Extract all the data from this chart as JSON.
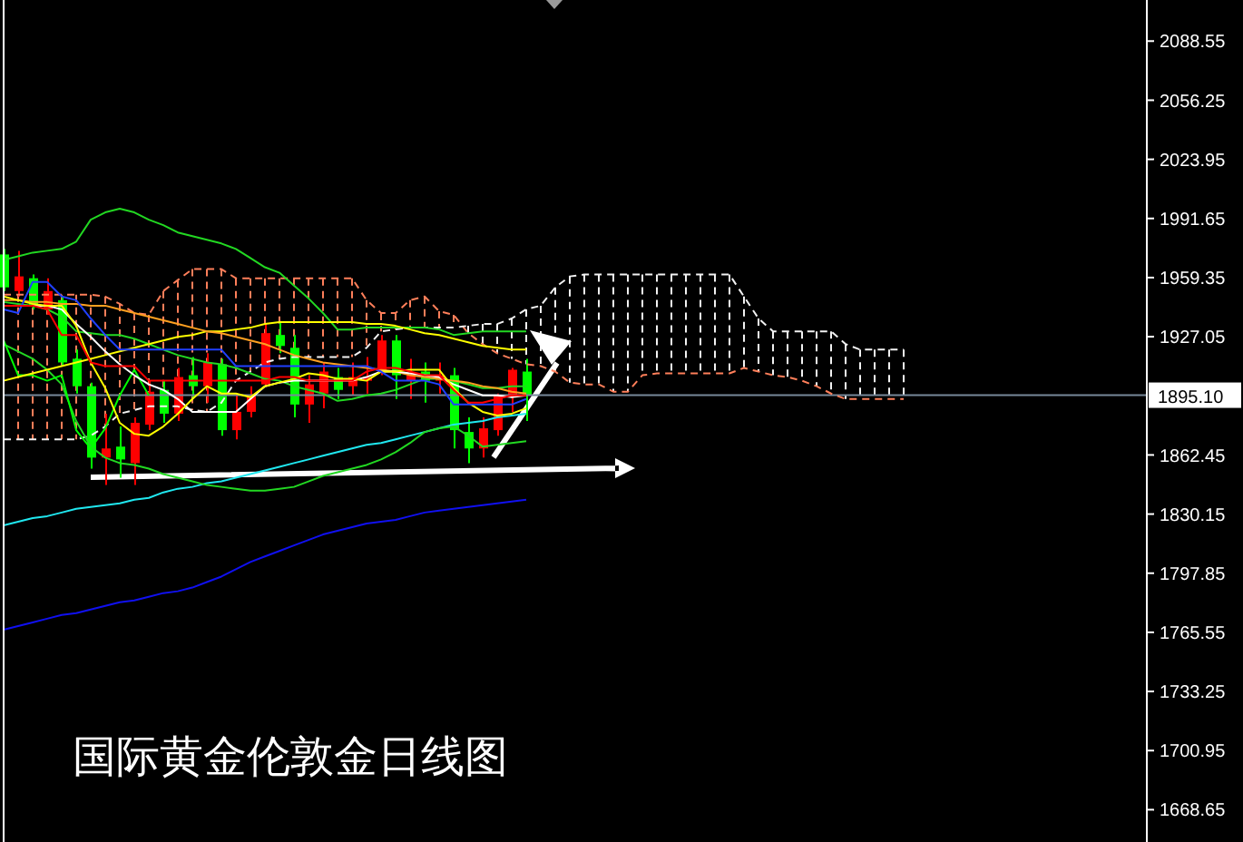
{
  "chart_data": {
    "type": "candlestick",
    "title": "国际黄金伦敦金日线图",
    "categories": [
      null,
      null,
      null,
      null,
      null,
      null,
      null,
      null,
      null,
      null,
      null,
      null,
      null,
      null,
      null,
      null,
      null,
      null,
      null,
      null,
      null,
      null,
      null,
      null,
      null,
      null,
      null,
      null,
      null,
      null,
      null,
      null,
      null,
      null,
      null,
      null,
      null,
      null,
      null,
      null,
      null,
      null,
      null,
      null,
      null,
      null,
      null,
      null,
      null,
      null,
      null,
      null,
      null,
      null,
      null,
      null,
      null,
      null,
      null,
      null,
      null,
      null,
      null,
      null,
      null,
      null,
      null,
      null,
      null,
      null,
      null,
      null,
      null,
      null,
      null,
      null,
      null,
      null,
      null
    ],
    "ohlc": [
      [
        1972,
        1975,
        1952,
        1954
      ],
      [
        1952,
        1974,
        1949,
        1960
      ],
      [
        1959,
        1961,
        1942,
        1944
      ],
      [
        1942,
        1959,
        1939,
        1952
      ],
      [
        1947,
        1949,
        1911,
        1913
      ],
      [
        1915,
        1920,
        1896,
        1900
      ],
      [
        1900,
        1902,
        1855,
        1861
      ],
      [
        1861,
        1885,
        1846,
        1866
      ],
      [
        1867,
        1878,
        1850,
        1860
      ],
      [
        1858,
        1883,
        1846,
        1880
      ],
      [
        1879,
        1903,
        1876,
        1897
      ],
      [
        1898,
        1903,
        1880,
        1885
      ],
      [
        1885,
        1910,
        1881,
        1905
      ],
      [
        1906,
        1916,
        1893,
        1900
      ],
      [
        1900,
        1918,
        1891,
        1913
      ],
      [
        1912,
        1915,
        1873,
        1876
      ],
      [
        1876,
        1896,
        1871,
        1886
      ],
      [
        1886,
        1900,
        1883,
        1895
      ],
      [
        1901,
        1934,
        1900,
        1929
      ],
      [
        1928,
        1935,
        1918,
        1922
      ],
      [
        1921,
        1928,
        1883,
        1890
      ],
      [
        1890,
        1906,
        1880,
        1901
      ],
      [
        1896,
        1913,
        1888,
        1908
      ],
      [
        1905,
        1910,
        1893,
        1898
      ],
      [
        1900,
        1913,
        1895,
        1905
      ],
      [
        1903,
        1916,
        1896,
        1905
      ],
      [
        1908,
        1928,
        1906,
        1925
      ],
      [
        1925,
        1928,
        1893,
        1906
      ],
      [
        1903,
        1915,
        1893,
        1906
      ],
      [
        1908,
        1913,
        1891,
        1903
      ],
      [
        1903,
        1913,
        1896,
        1906
      ],
      [
        1906,
        1910,
        1866,
        1876
      ],
      [
        1875,
        1883,
        1858,
        1866
      ],
      [
        1866,
        1883,
        1861,
        1877
      ],
      [
        1876,
        1896,
        1873,
        1895
      ],
      [
        1895,
        1910,
        1886,
        1909
      ],
      [
        1908,
        1915,
        1881,
        1895
      ],
      null,
      null,
      null,
      null,
      null,
      null,
      null,
      null,
      null,
      null,
      null,
      null,
      null,
      null,
      null,
      null,
      null,
      null,
      null,
      null,
      null,
      null,
      null,
      null,
      null,
      null,
      null,
      null,
      null,
      null,
      null,
      null,
      null,
      null,
      null,
      null,
      null,
      null,
      null,
      null,
      null,
      null
    ],
    "colors": [
      "#00ff00",
      "#ff0000",
      "#00ff00",
      "#ff0000",
      "#00ff00",
      "#00ff00",
      "#00ff00",
      "#ff0000",
      "#00ff00",
      "#ff0000",
      "#ff0000",
      "#00ff00",
      "#ff0000",
      "#00ff00",
      "#ff0000",
      "#00ff00",
      "#ff0000",
      "#ff0000",
      "#ff0000",
      "#00ff00",
      "#00ff00",
      "#ff0000",
      "#ff0000",
      "#00ff00",
      "#ff0000",
      "#ff0000",
      "#ff0000",
      "#00ff00",
      "#ff0000",
      "#00ff00",
      "#ff0000",
      "#00ff00",
      "#00ff00",
      "#ff0000",
      "#ff0000",
      "#ff0000",
      "#00ff00",
      null,
      null,
      null,
      null,
      null,
      null,
      null,
      null,
      null,
      null,
      null,
      null,
      null,
      null,
      null,
      null,
      null,
      null,
      null,
      null,
      null,
      null,
      null,
      null,
      null,
      null,
      null,
      null,
      null,
      null,
      null,
      null,
      null,
      null,
      null,
      null,
      null,
      null,
      null,
      null,
      null,
      null
    ],
    "series": [
      {
        "type": "line",
        "color": "#ff7f5a",
        "line_style": "dashed",
        "values": [
          1950,
          1950,
          1950,
          1950,
          1950,
          1950,
          1950,
          1949,
          1945,
          1940,
          1939,
          1952,
          1958,
          1964,
          1964,
          1964,
          1959,
          1959,
          1959,
          1959,
          1959,
          1959,
          1959,
          1959,
          1959,
          1947,
          1940,
          1940,
          1947,
          1949,
          1941,
          1939,
          1929,
          1923,
          1918,
          1915,
          1912,
          1911,
          1908,
          1902,
          1901,
          1901,
          1897,
          1897,
          1906,
          1907,
          1907,
          1907,
          1907,
          1907,
          1907,
          1910,
          1908,
          1906,
          1905,
          1903,
          1900,
          1896,
          1893,
          1893,
          1893,
          1893,
          1893,
          null,
          null,
          null,
          null,
          null,
          null,
          null,
          null,
          null,
          null,
          null,
          null,
          null,
          null,
          null,
          null
        ]
      },
      {
        "type": "line",
        "color": "#f2f2f2",
        "line_style": "dashed",
        "values": [
          1871,
          1871,
          1871,
          1871,
          1871,
          1871,
          1873,
          1878,
          1885,
          1887,
          1889,
          1889,
          1889,
          1887,
          1886,
          1891,
          1903,
          1908,
          1913,
          1915,
          1916,
          1916,
          1916,
          1916,
          1916,
          1921,
          1930,
          1931,
          1932,
          1932,
          1932,
          1932,
          1933,
          1934,
          1934,
          1937,
          1942,
          1944,
          1954,
          1960,
          1961,
          1961,
          1961,
          1961,
          1961,
          1961,
          1961,
          1961,
          1961,
          1961,
          1961,
          1949,
          1937,
          1930,
          1930,
          1930,
          1930,
          1930,
          1923,
          1920,
          1920,
          1920,
          1920,
          null,
          null,
          null,
          null,
          null,
          null,
          null,
          null,
          null,
          null,
          null,
          null,
          null,
          null,
          null,
          null
        ]
      },
      {
        "type": "line",
        "color": "#1010f0",
        "values": [
          1767,
          1769,
          1771,
          1773,
          1775,
          1776,
          1778,
          1780,
          1782,
          1783,
          1785,
          1787,
          1788,
          1790,
          1793,
          1796,
          1800,
          1804,
          1807,
          1810,
          1813,
          1816,
          1819,
          1821,
          1823,
          1825,
          1826,
          1827,
          1829,
          1831,
          1832,
          1833,
          1834,
          1835,
          1836,
          1837,
          1838,
          null,
          null,
          null,
          null,
          null,
          null,
          null,
          null,
          null,
          null,
          null,
          null,
          null,
          null,
          null,
          null,
          null,
          null,
          null,
          null,
          null,
          null,
          null,
          null,
          null,
          null,
          null,
          null,
          null,
          null,
          null,
          null,
          null,
          null,
          null,
          null,
          null,
          null,
          null,
          null,
          null,
          null
        ]
      },
      {
        "type": "line",
        "color": "#20e8f0",
        "values": [
          1824,
          1826,
          1828,
          1829,
          1831,
          1833,
          1834,
          1835,
          1836,
          1838,
          1839,
          1842,
          1844,
          1845,
          1847,
          1848,
          1850,
          1852,
          1854,
          1856,
          1858,
          1860,
          1862,
          1864,
          1866,
          1868,
          1869,
          1871,
          1873,
          1875,
          1877,
          1879,
          1880,
          1881,
          1883,
          1884,
          1885,
          null,
          null,
          null,
          null,
          null,
          null,
          null,
          null,
          null,
          null,
          null,
          null,
          null,
          null,
          null,
          null,
          null,
          null,
          null,
          null,
          null,
          null,
          null,
          null,
          null,
          null,
          null,
          null,
          null,
          null,
          null,
          null,
          null,
          null,
          null,
          null,
          null,
          null,
          null,
          null,
          null,
          null
        ]
      },
      {
        "type": "line",
        "color": "#22d822",
        "values": [
          1969,
          1971,
          1973,
          1974,
          1975,
          1979,
          1991,
          1995,
          1997,
          1995,
          1991,
          1988,
          1984,
          1982,
          1980,
          1978,
          1975,
          1970,
          1965,
          1962,
          1955,
          1948,
          1940,
          1931,
          1931,
          1932,
          1932,
          1932,
          1932,
          1932,
          1931,
          1928,
          1929,
          1930,
          1930,
          1930,
          1930,
          null,
          null,
          null,
          null,
          null,
          null,
          null,
          null,
          null,
          null,
          null,
          null,
          null,
          null,
          null,
          null,
          null,
          null,
          null,
          null,
          null,
          null,
          null,
          null,
          null,
          null,
          null,
          null,
          null,
          null,
          null,
          null,
          null,
          null,
          null,
          null,
          null,
          null,
          null,
          null,
          null,
          null
        ]
      },
      {
        "type": "line",
        "color": "#22d822",
        "values": [
          1946,
          1945,
          1944,
          1942,
          1938,
          1930,
          1929,
          1928,
          1928,
          1926,
          1923,
          1920,
          1917,
          1915,
          1913,
          1912,
          1910,
          1907,
          1904,
          1903,
          1900,
          1898,
          1896,
          1892,
          1893,
          1895,
          1896,
          1898,
          1901,
          1904,
          1904,
          1903,
          1901,
          1899,
          1899,
          1900,
          1900,
          null,
          null,
          null,
          null,
          null,
          null,
          null,
          null,
          null,
          null,
          null,
          null,
          null,
          null,
          null,
          null,
          null,
          null,
          null,
          null,
          null,
          null,
          null,
          null,
          null,
          null,
          null,
          null,
          null,
          null,
          null,
          null,
          null,
          null,
          null,
          null,
          null,
          null,
          null,
          null,
          null,
          null
        ]
      },
      {
        "type": "line",
        "color": "#22d822",
        "values": [
          1923,
          1919,
          1915,
          1909,
          1901,
          1881,
          1867,
          1861,
          1858,
          1857,
          1855,
          1852,
          1850,
          1848,
          1846,
          1845,
          1844,
          1843,
          1843,
          1844,
          1845,
          1848,
          1851,
          1853,
          1855,
          1857,
          1860,
          1864,
          1869,
          1875,
          1877,
          1878,
          1873,
          1867,
          1868,
          1869,
          1870,
          null,
          null,
          null,
          null,
          null,
          null,
          null,
          null,
          null,
          null,
          null,
          null,
          null,
          null,
          null,
          null,
          null,
          null,
          null,
          null,
          null,
          null,
          null,
          null,
          null,
          null,
          null,
          null,
          null,
          null,
          null,
          null,
          null,
          null,
          null,
          null,
          null,
          null,
          null,
          null,
          null,
          null
        ]
      },
      {
        "type": "line",
        "color": "#00ff00",
        "values": [
          1925,
          1906,
          1906,
          1903,
          1906,
          1876,
          1866,
          1877,
          1895,
          1909,
          1895,
          null,
          null,
          null,
          null,
          null,
          null,
          null,
          null,
          null,
          null,
          null,
          null,
          null,
          null,
          null,
          null,
          null,
          null,
          null,
          null,
          null,
          null,
          null,
          null,
          null,
          null,
          null,
          null,
          null,
          null,
          null,
          null,
          null,
          null,
          null,
          null,
          null,
          null,
          null,
          null,
          null,
          null,
          null,
          null,
          null,
          null,
          null,
          null,
          null,
          null,
          null,
          null,
          null,
          null,
          null,
          null,
          null,
          null,
          null,
          null,
          null,
          null,
          null,
          null,
          null,
          null,
          null,
          null
        ]
      },
      {
        "type": "line",
        "color": "#ffff00",
        "values": [
          1903,
          1905,
          1907,
          1909,
          1911,
          1913,
          1915,
          1917,
          1919,
          1921,
          1923,
          1925,
          1927,
          1928,
          1930,
          1930,
          1931,
          1932,
          1934,
          1935,
          1935,
          1935,
          1935,
          1935,
          1935,
          1934,
          1934,
          1933,
          1931,
          1929,
          1928,
          1926,
          1924,
          1922,
          1921,
          1920,
          1920,
          null,
          null,
          null,
          null,
          null,
          null,
          null,
          null,
          null,
          null,
          null,
          null,
          null,
          null,
          null,
          null,
          null,
          null,
          null,
          null,
          null,
          null,
          null,
          null,
          null,
          null,
          null,
          null,
          null,
          null,
          null,
          null,
          null,
          null,
          null,
          null,
          null,
          null,
          null,
          null,
          null,
          null
        ]
      },
      {
        "type": "line",
        "color": "#ffa020",
        "values": [
          1947,
          1947,
          1946,
          1946,
          1945,
          1945,
          1944,
          1944,
          1942,
          1940,
          1938,
          1936,
          1934,
          1932,
          1930,
          1929,
          1927,
          1925,
          1923,
          1920,
          1917,
          1915,
          1913,
          1912,
          1911,
          1910,
          1909,
          1908,
          1906,
          1905,
          1904,
          1903,
          1902,
          1900,
          1899,
          1897,
          1896,
          null,
          null,
          null,
          null,
          null,
          null,
          null,
          null,
          null,
          null,
          null,
          null,
          null,
          null,
          null,
          null,
          null,
          null,
          null,
          null,
          null,
          null,
          null,
          null,
          null,
          null,
          null,
          null,
          null,
          null,
          null,
          null,
          null,
          null,
          null,
          null,
          null,
          null,
          null,
          null,
          null,
          null
        ]
      },
      {
        "type": "line",
        "color": "#ffffff",
        "values": [
          1944,
          1944,
          1944,
          1944,
          1942,
          1934,
          1927,
          1919,
          1912,
          1906,
          1901,
          1898,
          1893,
          1886,
          1886,
          1886,
          1886,
          1893,
          1900,
          1902,
          1903,
          1903,
          1903,
          1903,
          1903,
          1905,
          1908,
          1908,
          1907,
          1906,
          1905,
          1901,
          1898,
          1895,
          1895,
          1894,
          1895,
          null,
          null,
          null,
          null,
          null,
          null,
          null,
          null,
          null,
          null,
          null,
          null,
          null,
          null,
          null,
          null,
          null,
          null,
          null,
          null,
          null,
          null,
          null,
          null,
          null,
          null,
          null,
          null,
          null,
          null,
          null,
          null,
          null,
          null,
          null,
          null,
          null,
          null,
          null,
          null,
          null,
          null
        ]
      },
      {
        "type": "line",
        "color": "#ffff00",
        "values": [
          1949,
          1947,
          1945,
          1944,
          1944,
          1933,
          1913,
          1899,
          1880,
          1874,
          1873,
          1878,
          1885,
          1893,
          1900,
          1896,
          1896,
          1894,
          1900,
          1902,
          1904,
          1907,
          1906,
          1904,
          1904,
          1903,
          1908,
          1908,
          1909,
          1909,
          1909,
          1899,
          1891,
          1886,
          1884,
          1885,
          1888,
          null,
          null,
          null,
          null,
          null,
          null,
          null,
          null,
          null,
          null,
          null,
          null,
          null,
          null,
          null,
          null,
          null,
          null,
          null,
          null,
          null,
          null,
          null,
          null,
          null,
          null,
          null,
          null,
          null,
          null,
          null,
          null,
          null,
          null,
          null,
          null,
          null,
          null,
          null,
          null,
          null,
          null
        ]
      },
      {
        "type": "line",
        "color": "#2040ff",
        "values": [
          1942,
          1940,
          1957,
          1957,
          1949,
          1947,
          1937,
          1928,
          1920,
          1920,
          1920,
          1920,
          1920,
          1920,
          1920,
          1920,
          1911,
          1911,
          1911,
          1911,
          1911,
          1911,
          1911,
          1911,
          1911,
          1911,
          1908,
          1903,
          1903,
          1903,
          1901,
          1890,
          1890,
          1890,
          1890,
          1890,
          1893,
          null,
          null,
          null,
          null,
          null,
          null,
          null,
          null,
          null,
          null,
          null,
          null,
          null,
          null,
          null,
          null,
          null,
          null,
          null,
          null,
          null,
          null,
          null,
          null,
          null,
          null,
          null,
          null,
          null,
          null,
          null,
          null,
          null,
          null,
          null,
          null,
          null,
          null,
          null,
          null,
          null,
          null
        ]
      },
      {
        "type": "line",
        "color": "#ff0000",
        "values": [
          1944,
          1944,
          1944,
          1942,
          1928,
          1928,
          1913,
          1911,
          1911,
          1911,
          1903,
          1903,
          1903,
          1903,
          1903,
          1903,
          1903,
          1903,
          1903,
          1905,
          1905,
          1903,
          1903,
          1903,
          1903,
          1908,
          1910,
          1910,
          1908,
          1906,
          1906,
          1898,
          1891,
          1891,
          1893,
          1895,
          1895,
          null,
          null,
          null,
          null,
          null,
          null,
          null,
          null,
          null,
          null,
          null,
          null,
          null,
          null,
          null,
          null,
          null,
          null,
          null,
          null,
          null,
          null,
          null,
          null,
          null,
          null,
          null,
          null,
          null,
          null,
          null,
          null,
          null,
          null,
          null,
          null,
          null,
          null,
          null,
          null,
          null,
          null
        ]
      }
    ],
    "ylim": [
      1651,
      2111
    ],
    "yticks": [
      2088.55,
      2056.25,
      2023.95,
      1991.65,
      1959.35,
      1927.05,
      1862.45,
      1830.15,
      1797.85,
      1765.55,
      1733.25,
      1700.95,
      1668.65
    ],
    "ref_lines": [
      {
        "axis": "y",
        "value": 1895.1,
        "label": "1895.10",
        "color": "#778899"
      }
    ],
    "tick_labels": "y"
  }
}
